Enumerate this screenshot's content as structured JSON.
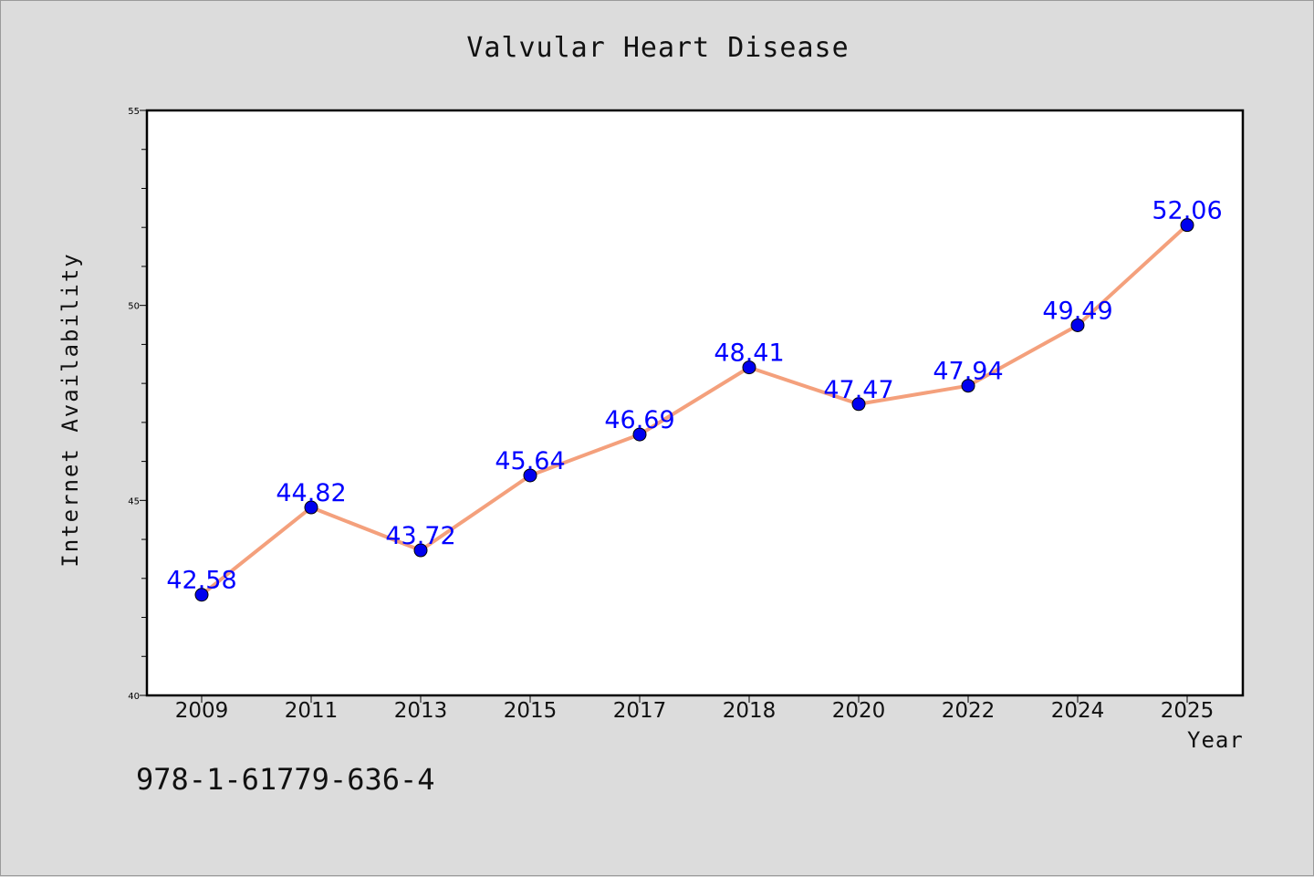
{
  "chart_data": {
    "type": "line",
    "title": "Valvular Heart Disease",
    "xlabel": "Year",
    "ylabel": "Internet Availability",
    "categories": [
      "2009",
      "2011",
      "2013",
      "2015",
      "2017",
      "2018",
      "2020",
      "2022",
      "2024",
      "2025"
    ],
    "series": [
      {
        "values": [
          42.58,
          44.82,
          43.72,
          45.64,
          46.69,
          48.41,
          47.47,
          47.94,
          49.49,
          52.06
        ],
        "line_color": "#f4a07c",
        "marker_color": "#0000ee",
        "label_color": "#0000ff"
      }
    ],
    "ylim": [
      40,
      55
    ],
    "yticks": [
      40,
      45,
      50,
      55
    ],
    "grid": false,
    "legend": "none"
  },
  "footnote": "978-1-61779-636-4"
}
